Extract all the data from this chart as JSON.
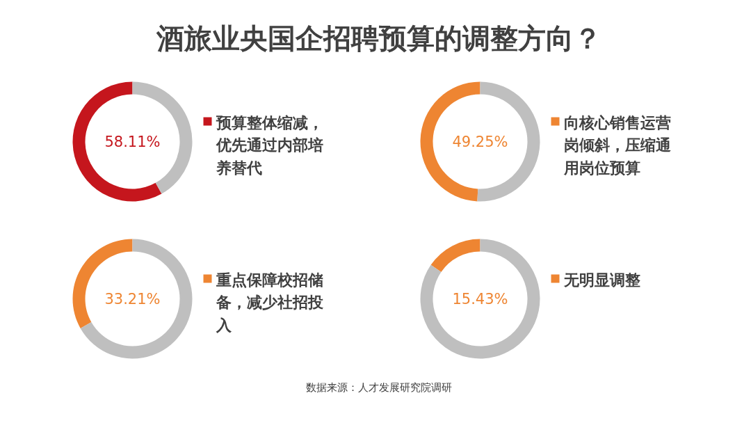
{
  "chart_data": [
    {
      "type": "donut",
      "title": "酒旅业央国企招聘预算的调整方向？",
      "categories": [
        "预算整体缩减，优先通过内部培养替代",
        null
      ],
      "values": [
        58.11,
        41.89
      ],
      "colors": [
        "#c5161d",
        "#bfbfbf"
      ],
      "value_labels": [
        "58.11%",
        null
      ]
    },
    {
      "type": "donut",
      "categories": [
        "向核心销售运营岗倾斜，压缩通用岗位预算",
        null
      ],
      "values": [
        49.25,
        50.75
      ],
      "colors": [
        "#ee8532",
        "#bfbfbf"
      ],
      "value_labels": [
        "49.25%",
        null
      ]
    },
    {
      "type": "donut",
      "categories": [
        "重点保障校招储备，减少社招投入",
        null
      ],
      "values": [
        33.21,
        66.79
      ],
      "colors": [
        "#ee8532",
        "#bfbfbf"
      ],
      "value_labels": [
        "33.21%",
        null
      ]
    },
    {
      "type": "donut",
      "categories": [
        "无明显调整",
        null
      ],
      "values": [
        15.43,
        84.57
      ],
      "colors": [
        "#ee8532",
        "#bfbfbf"
      ],
      "value_labels": [
        "15.43%",
        null
      ],
      "annotations": [
        "数据来源：人才发展研究院调研"
      ]
    }
  ]
}
